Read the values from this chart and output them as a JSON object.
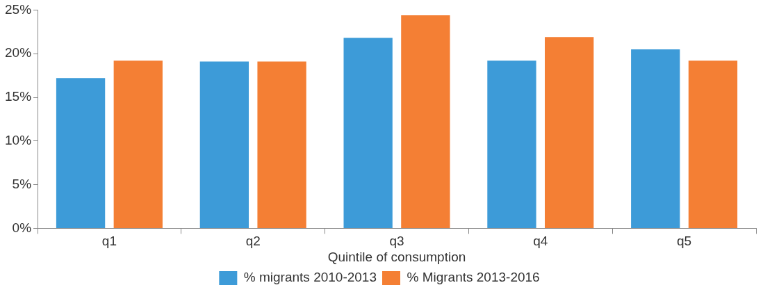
{
  "chart_data": {
    "type": "bar",
    "xlabel": "Quintile of consumption",
    "categories": [
      "q1",
      "q2",
      "q3",
      "q4",
      "q5"
    ],
    "series": [
      {
        "name": "% migrants 2010-2013",
        "color": "#3d9bd8",
        "values": [
          17.2,
          19.1,
          21.8,
          19.2,
          20.5
        ]
      },
      {
        "name": "% Migrants 2013-2016",
        "color": "#f47f34",
        "values": [
          19.2,
          19.1,
          24.4,
          21.9,
          19.2
        ]
      }
    ],
    "ylim": [
      0,
      25
    ],
    "yticks": [
      {
        "value": 0,
        "label": "0%"
      },
      {
        "value": 5,
        "label": "5%"
      },
      {
        "value": 10,
        "label": "10%"
      },
      {
        "value": 15,
        "label": "15%"
      },
      {
        "value": 20,
        "label": "20%"
      },
      {
        "value": 25,
        "label": "25%"
      }
    ],
    "grid": false,
    "legend": "bottom"
  }
}
